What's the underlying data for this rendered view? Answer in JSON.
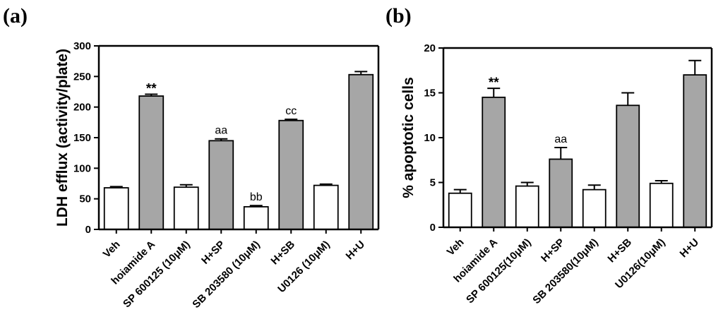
{
  "chart_data": [
    {
      "type": "bar",
      "panel_label": "(a)",
      "title": "",
      "xlabel": "",
      "ylabel": "LDH efflux (activity/plate)",
      "ylim": [
        0,
        300
      ],
      "yticks": [
        "0",
        "50",
        "100",
        "150",
        "200",
        "250",
        "300"
      ],
      "categories": [
        "Veh",
        "hoiamide A",
        "SP 600125 (10μM)",
        "H+SP",
        "SB 203580 (10μM)",
        "H+SB",
        "U0126 (10μM)",
        "H+U"
      ],
      "values": [
        68,
        218,
        69,
        145,
        37,
        178,
        72,
        253
      ],
      "errors": [
        2,
        3,
        4,
        3,
        2,
        2,
        2,
        5
      ],
      "bar_colors": [
        "#ffffff",
        "#a6a6a6",
        "#ffffff",
        "#a6a6a6",
        "#ffffff",
        "#a6a6a6",
        "#ffffff",
        "#a6a6a6"
      ],
      "annotations": [
        "",
        "**",
        "",
        "aa",
        "bb",
        "cc",
        "",
        ""
      ]
    },
    {
      "type": "bar",
      "panel_label": "(b)",
      "title": "",
      "xlabel": "",
      "ylabel": "% apoptotic cells",
      "ylim": [
        0,
        20
      ],
      "yticks": [
        "0",
        "5",
        "10",
        "15",
        "20"
      ],
      "categories": [
        "Veh",
        "hoiamide A",
        "SP 600125(10μM)",
        "H+SP",
        "SB 203580(10μM)",
        "H+SB",
        "U0126(10μM)",
        "H+U"
      ],
      "values": [
        3.8,
        14.5,
        4.6,
        7.6,
        4.2,
        13.6,
        4.9,
        17.0
      ],
      "errors": [
        0.4,
        1.0,
        0.4,
        1.3,
        0.5,
        1.4,
        0.3,
        1.6
      ],
      "bar_colors": [
        "#ffffff",
        "#a6a6a6",
        "#ffffff",
        "#a6a6a6",
        "#ffffff",
        "#a6a6a6",
        "#ffffff",
        "#a6a6a6"
      ],
      "annotations": [
        "",
        "**",
        "",
        "aa",
        "",
        "",
        "",
        ""
      ]
    }
  ]
}
